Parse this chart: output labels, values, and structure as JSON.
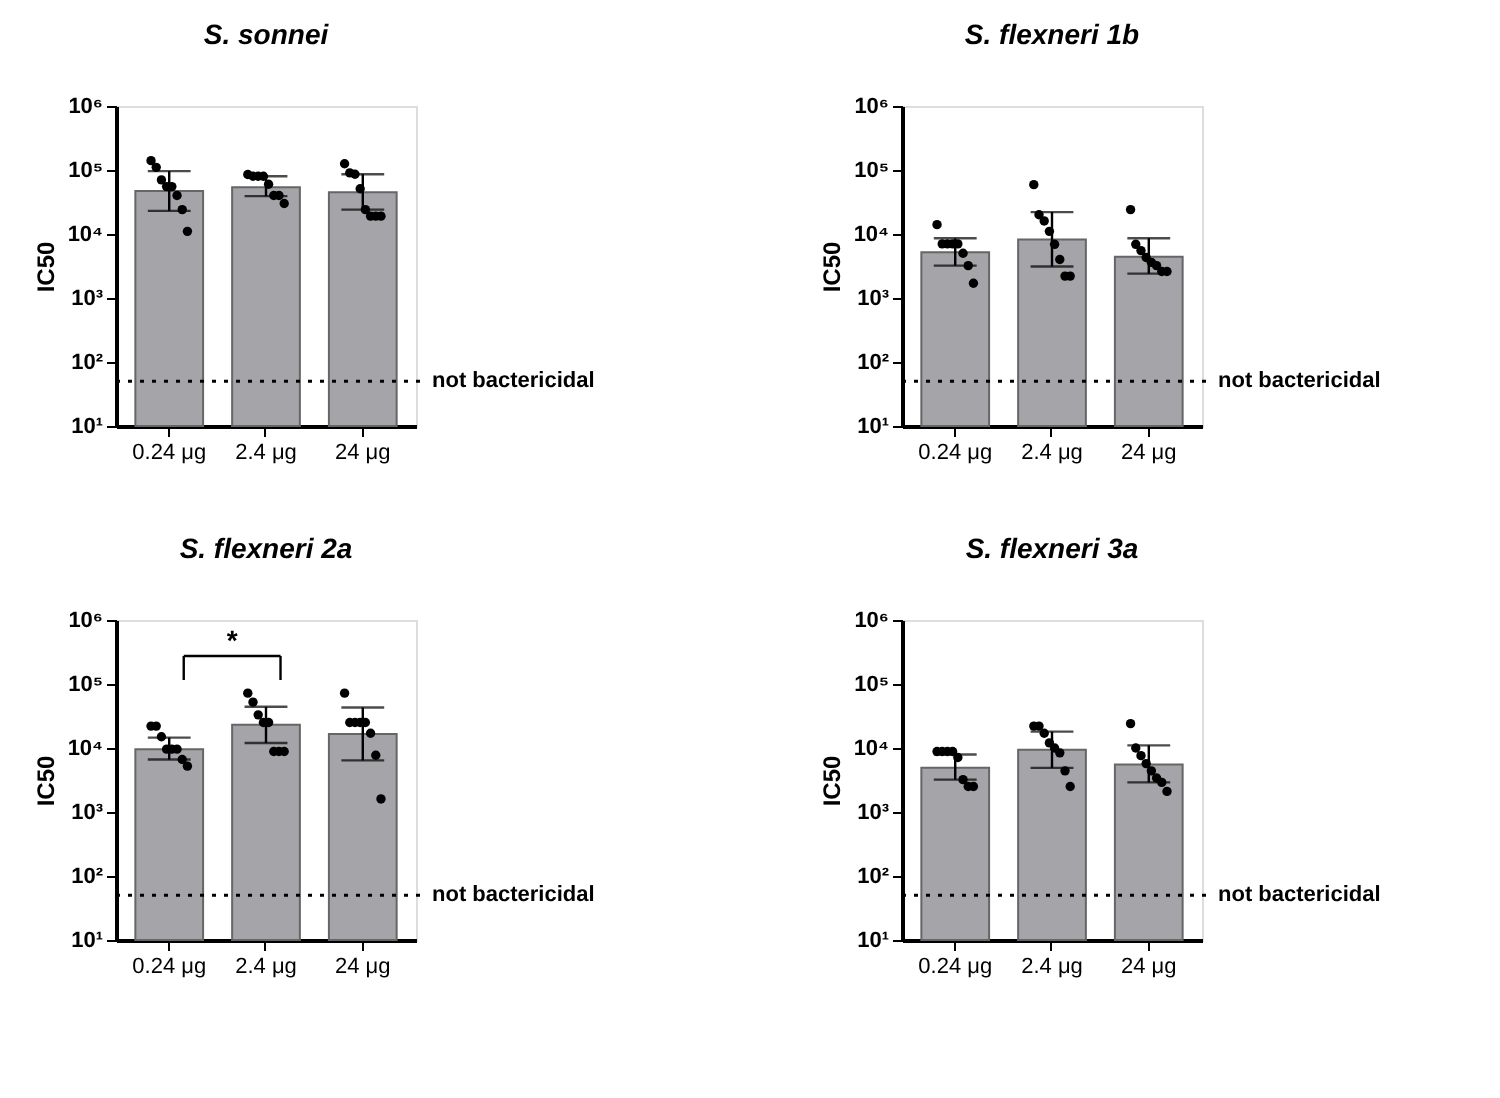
{
  "chart_data": [
    {
      "type": "bar",
      "title": "S. sonnei",
      "ylabel": "IC50",
      "categories": [
        "0.24 μg",
        "2.4 μg",
        "24 μg"
      ],
      "log": true,
      "grid": false,
      "ylim": [
        10,
        1000000
      ],
      "yticks": [
        {
          "value": 10,
          "label": "10¹"
        },
        {
          "value": 100,
          "label": "10²"
        },
        {
          "value": 1000,
          "label": "10³"
        },
        {
          "value": 10000,
          "label": "10⁴"
        },
        {
          "value": 100000,
          "label": "10⁵"
        },
        {
          "value": 1000000,
          "label": "10⁶"
        }
      ],
      "series": [
        {
          "color": "#a4a4a9",
          "values": [
            47000,
            54000,
            45000
          ],
          "errors": [
            [
              23000,
              96000
            ],
            [
              39000,
              80000
            ],
            [
              24000,
              86000
            ]
          ]
        },
        {
          "type": "scatter",
          "color": "#000000",
          "marker": "circle",
          "x": [
            "0.24 μg",
            "0.24 μg",
            "0.24 μg",
            "0.24 μg",
            "0.24 μg",
            "0.24 μg",
            "0.24 μg",
            "0.24 μg",
            "2.4 μg",
            "2.4 μg",
            "2.4 μg",
            "2.4 μg",
            "2.4 μg",
            "2.4 μg",
            "2.4 μg",
            "2.4 μg",
            "24 μg",
            "24 μg",
            "24 μg",
            "24 μg",
            "24 μg",
            "24 μg",
            "24 μg",
            "24 μg"
          ],
          "values": [
            140000,
            110000,
            70000,
            55000,
            55000,
            40000,
            24000,
            11000,
            85000,
            80000,
            80000,
            80000,
            60000,
            40000,
            40000,
            30000,
            125000,
            90000,
            86000,
            51000,
            24000,
            19000,
            19000,
            19000
          ]
        }
      ],
      "ref_lines": [
        {
          "axis": "y",
          "value": 50,
          "label": "not bactericidal",
          "line_style": "dotted",
          "color": "#000000"
        }
      ]
    },
    {
      "type": "bar",
      "title": "S. flexneri 1b",
      "ylabel": "IC50",
      "categories": [
        "0.24 μg",
        "2.4 μg",
        "24 μg"
      ],
      "log": true,
      "grid": false,
      "ylim": [
        10,
        1000000
      ],
      "yticks": [
        {
          "value": 10,
          "label": "10¹"
        },
        {
          "value": 100,
          "label": "10²"
        },
        {
          "value": 1000,
          "label": "10³"
        },
        {
          "value": 10000,
          "label": "10⁴"
        },
        {
          "value": 100000,
          "label": "10⁵"
        },
        {
          "value": 1000000,
          "label": "10⁶"
        }
      ],
      "series": [
        {
          "color": "#a4a4a9",
          "values": [
            5200,
            8200,
            4400
          ],
          "errors": [
            [
              3200,
              8600
            ],
            [
              3100,
              22000
            ],
            [
              2400,
              8600
            ]
          ]
        },
        {
          "type": "scatter",
          "color": "#000000",
          "marker": "circle",
          "x": [
            "0.24 μg",
            "0.24 μg",
            "0.24 μg",
            "0.24 μg",
            "0.24 μg",
            "0.24 μg",
            "0.24 μg",
            "0.24 μg",
            "2.4 μg",
            "2.4 μg",
            "2.4 μg",
            "2.4 μg",
            "2.4 μg",
            "2.4 μg",
            "2.4 μg",
            "2.4 μg",
            "24 μg",
            "24 μg",
            "24 μg",
            "24 μg",
            "24 μg",
            "24 μg",
            "24 μg",
            "24 μg"
          ],
          "values": [
            14000,
            7000,
            7000,
            7000,
            7000,
            5000,
            3200,
            1700,
            59000,
            20000,
            16000,
            11000,
            6900,
            4000,
            2200,
            2200,
            24000,
            6900,
            5500,
            4300,
            3600,
            3200,
            2600,
            2600
          ]
        }
      ],
      "ref_lines": [
        {
          "axis": "y",
          "value": 50,
          "label": "not bactericidal",
          "line_style": "dotted",
          "color": "#000000"
        }
      ]
    },
    {
      "type": "bar",
      "title": "S. flexneri 2a",
      "ylabel": "IC50",
      "categories": [
        "0.24 μg",
        "2.4 μg",
        "24 μg"
      ],
      "log": true,
      "grid": false,
      "ylim": [
        10,
        1000000
      ],
      "yticks": [
        {
          "value": 10,
          "label": "10¹"
        },
        {
          "value": 100,
          "label": "10²"
        },
        {
          "value": 1000,
          "label": "10³"
        },
        {
          "value": 10000,
          "label": "10⁴"
        },
        {
          "value": 100000,
          "label": "10⁵"
        },
        {
          "value": 1000000,
          "label": "10⁶"
        }
      ],
      "series": [
        {
          "color": "#a4a4a9",
          "values": [
            9600,
            23000,
            16500
          ],
          "errors": [
            [
              6600,
              14500
            ],
            [
              12000,
              44000
            ],
            [
              6400,
              43000
            ]
          ]
        },
        {
          "type": "scatter",
          "color": "#000000",
          "marker": "circle",
          "x": [
            "0.24 μg",
            "0.24 μg",
            "0.24 μg",
            "0.24 μg",
            "0.24 μg",
            "0.24 μg",
            "0.24 μg",
            "0.24 μg",
            "2.4 μg",
            "2.4 μg",
            "2.4 μg",
            "2.4 μg",
            "2.4 μg",
            "2.4 μg",
            "2.4 μg",
            "2.4 μg",
            "24 μg",
            "24 μg",
            "24 μg",
            "24 μg",
            "24 μg",
            "24 μg",
            "24 μg",
            "24 μg"
          ],
          "values": [
            22000,
            22000,
            15000,
            9600,
            9600,
            9600,
            6600,
            5200,
            72000,
            52000,
            33000,
            25000,
            25000,
            8800,
            8800,
            8800,
            72000,
            25000,
            25000,
            25000,
            25000,
            17000,
            7700,
            1600
          ]
        }
      ],
      "annotations": [
        "*"
      ],
      "ref_lines": [
        {
          "axis": "y",
          "value": 50,
          "label": "not bactericidal",
          "line_style": "dotted",
          "color": "#000000"
        }
      ]
    },
    {
      "type": "bar",
      "title": "S. flexneri 3a",
      "ylabel": "IC50",
      "categories": [
        "0.24 μg",
        "2.4 μg",
        "24 μg"
      ],
      "log": true,
      "grid": false,
      "ylim": [
        10,
        1000000
      ],
      "yticks": [
        {
          "value": 10,
          "label": "10¹"
        },
        {
          "value": 100,
          "label": "10²"
        },
        {
          "value": 1000,
          "label": "10³"
        },
        {
          "value": 10000,
          "label": "10⁴"
        },
        {
          "value": 100000,
          "label": "10⁵"
        },
        {
          "value": 1000000,
          "label": "10⁶"
        }
      ],
      "series": [
        {
          "color": "#a4a4a9",
          "values": [
            4900,
            9400,
            5500
          ],
          "errors": [
            [
              3200,
              7900
            ],
            [
              4900,
              18000
            ],
            [
              2900,
              11000
            ]
          ]
        },
        {
          "type": "scatter",
          "color": "#000000",
          "marker": "circle",
          "x": [
            "0.24 μg",
            "0.24 μg",
            "0.24 μg",
            "0.24 μg",
            "0.24 μg",
            "0.24 μg",
            "0.24 μg",
            "0.24 μg",
            "2.4 μg",
            "2.4 μg",
            "2.4 μg",
            "2.4 μg",
            "2.4 μg",
            "2.4 μg",
            "2.4 μg",
            "2.4 μg",
            "24 μg",
            "24 μg",
            "24 μg",
            "24 μg",
            "24 μg",
            "24 μg",
            "24 μg",
            "24 μg"
          ],
          "values": [
            8800,
            8800,
            8800,
            8800,
            7100,
            3200,
            2500,
            2500,
            22000,
            22000,
            17000,
            12000,
            10000,
            8400,
            4400,
            2500,
            24000,
            10000,
            7600,
            5700,
            4400,
            3400,
            2900,
            2100
          ]
        }
      ],
      "ref_lines": [
        {
          "axis": "y",
          "value": 50,
          "label": "not bactericidal",
          "line_style": "dotted",
          "color": "#000000"
        }
      ]
    }
  ]
}
